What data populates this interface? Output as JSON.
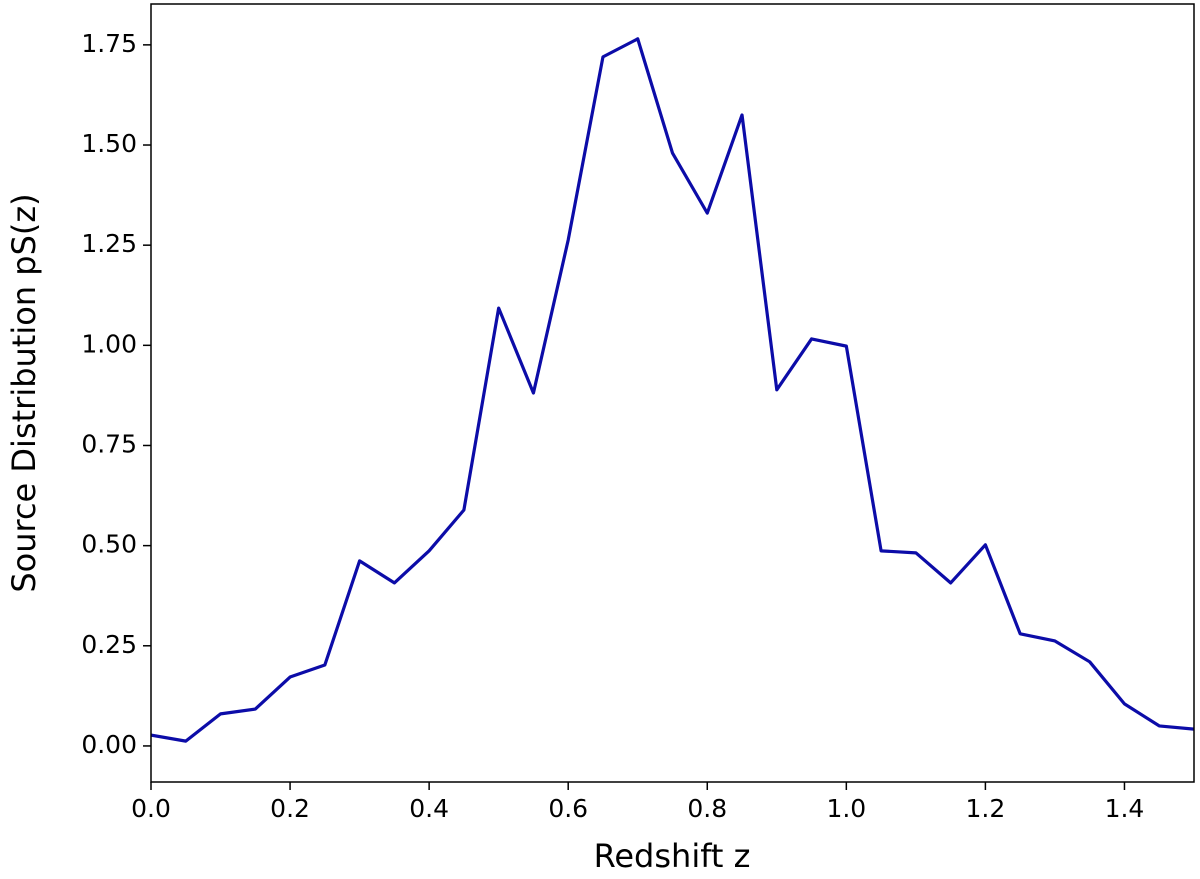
{
  "chart_data": {
    "type": "line",
    "xlabel": "Redshift z",
    "ylabel": "Source Distribution pS(z)",
    "x": [
      0,
      0.05,
      0.1,
      0.15,
      0.2,
      0.25,
      0.3,
      0.35,
      0.4,
      0.45,
      0.5,
      0.55,
      0.6,
      0.65,
      0.7,
      0.75,
      0.8,
      0.85,
      0.9,
      0.95,
      1.0,
      1.05,
      1.1,
      1.15,
      1.2,
      1.25,
      1.3,
      1.35,
      1.4,
      1.45,
      1.5
    ],
    "series": [
      {
        "color": "#0c0ca8",
        "values": [
          0.027,
          0.012,
          0.08,
          0.092,
          0.172,
          0.202,
          0.462,
          0.407,
          0.487,
          0.589,
          1.093,
          0.881,
          1.263,
          1.72,
          1.765,
          1.48,
          1.33,
          1.575,
          0.889,
          1.016,
          0.998,
          0.487,
          0.482,
          0.407,
          0.502,
          0.28,
          0.262,
          0.21,
          0.105,
          0.05,
          0.042
        ]
      }
    ],
    "xlim": [
      0,
      1.5
    ],
    "ylim": [
      -0.09,
      1.852
    ],
    "xticks": [
      {
        "value": 0,
        "label": "0.0"
      },
      {
        "value": 0.2,
        "label": "0.2"
      },
      {
        "value": 0.4,
        "label": "0.4"
      },
      {
        "value": 0.6,
        "label": "0.6"
      },
      {
        "value": 0.8,
        "label": "0.8"
      },
      {
        "value": 1.0,
        "label": "1.0"
      },
      {
        "value": 1.2,
        "label": "1.2"
      },
      {
        "value": 1.4,
        "label": "1.4"
      }
    ],
    "yticks": [
      {
        "value": 0,
        "label": "0.00"
      },
      {
        "value": 0.25,
        "label": "0.25"
      },
      {
        "value": 0.5,
        "label": "0.50"
      },
      {
        "value": 0.75,
        "label": "0.75"
      },
      {
        "value": 1.0,
        "label": "1.00"
      },
      {
        "value": 1.25,
        "label": "1.25"
      },
      {
        "value": 1.5,
        "label": "1.50"
      },
      {
        "value": 1.75,
        "label": "1.75"
      }
    ],
    "grid": false
  }
}
